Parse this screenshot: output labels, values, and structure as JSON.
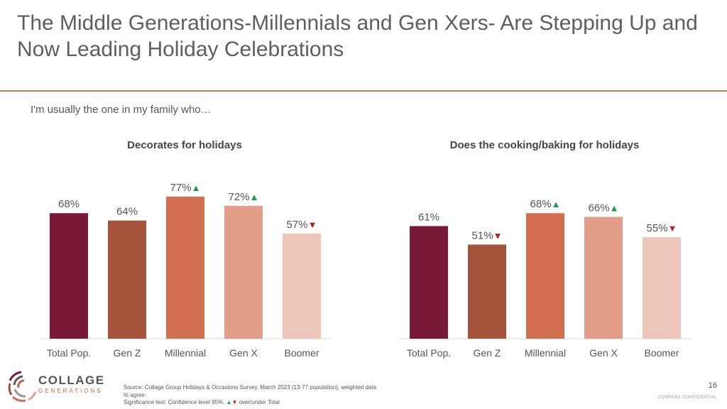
{
  "title": "The Middle Generations-Millennials and Gen Xers- Are Stepping Up and Now Leading Holiday Celebrations",
  "subtitle": "I'm usually the one in my family who…",
  "chart_data": [
    {
      "type": "bar",
      "title": "Decorates for holidays",
      "categories": [
        "Total Pop.",
        "Gen Z",
        "Millennial",
        "Gen X",
        "Boomer"
      ],
      "values": [
        68,
        64,
        77,
        72,
        57
      ],
      "labels": [
        "68%",
        "64%",
        "77%",
        "72%",
        "57%"
      ],
      "significance": [
        "",
        "",
        "up",
        "up",
        "down"
      ],
      "colors": [
        "#7a1838",
        "#a5533b",
        "#d26f51",
        "#e39e8a",
        "#eec6b9"
      ],
      "ylim": [
        0,
        100
      ]
    },
    {
      "type": "bar",
      "title": "Does the cooking/baking for holidays",
      "categories": [
        "Total Pop.",
        "Gen Z",
        "Millennial",
        "Gen X",
        "Boomer"
      ],
      "values": [
        61,
        51,
        68,
        66,
        55
      ],
      "labels": [
        "61%",
        "51%",
        "68%",
        "66%",
        "55%"
      ],
      "significance": [
        "",
        "down",
        "up",
        "up",
        "down"
      ],
      "colors": [
        "#7a1838",
        "#a5533b",
        "#d26f51",
        "#e39e8a",
        "#eec6b9"
      ],
      "ylim": [
        0,
        100
      ]
    }
  ],
  "legend": {
    "up_symbol": "▲",
    "down_symbol": "▼"
  },
  "logo": {
    "line1": "COLLAGE",
    "line2": "GENERATIONS"
  },
  "footnote": {
    "line1": "Source: Collage Group Holidays & Occasions Survey, March 2023 (13-77 population), weighted data",
    "line2": "% agree",
    "line3_prefix": "Significance test: Confidence level 95%. ",
    "line3_suffix": " over/under Total"
  },
  "page_number": "16",
  "confidential": "COMPANY CONFIDENTIAL"
}
